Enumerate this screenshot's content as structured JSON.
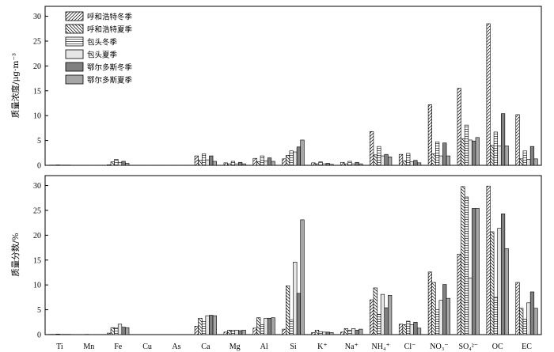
{
  "colors": {
    "hohhot_winter": "hatch-forward",
    "hohhot_summer": "hatch-backward",
    "baotou_winter": "horizontal-lines",
    "baotou_summer": "#e6e6e6",
    "ordos_winter": "#808080",
    "ordos_summer": "#a6a6a6"
  },
  "chart_data": [
    {
      "type": "bar",
      "ylabel": "质量浓度/μg·m⁻³",
      "ylim": [
        0,
        32
      ],
      "yticks": [
        "0",
        "5",
        "10",
        "15",
        "20",
        "25",
        "30"
      ],
      "legend": "top-left",
      "categories": [
        "Ti",
        "Mn",
        "Fe",
        "Cu",
        "As",
        "Ca",
        "Mg",
        "Al",
        "Si",
        "K⁺",
        "Na⁺",
        "NH₄⁺",
        "Cl⁻",
        "NO₃⁻",
        "SO₄²⁻",
        "OC",
        "EC"
      ],
      "series": [
        {
          "name": "呼和浩特冬季",
          "values": [
            0.05,
            0.02,
            0.1,
            0.02,
            0.02,
            1.9,
            0.5,
            1.4,
            1.3,
            0.5,
            0.6,
            6.8,
            2.2,
            12.2,
            15.5,
            28.5,
            10.2
          ]
        },
        {
          "name": "呼和浩特夏季",
          "values": [
            0.05,
            0.02,
            0.7,
            0.02,
            0.02,
            1.0,
            0.3,
            0.7,
            2.0,
            0.3,
            0.3,
            2.1,
            0.9,
            2.3,
            5.3,
            4.0,
            1.3
          ]
        },
        {
          "name": "包头冬季",
          "values": [
            0.08,
            0.03,
            1.2,
            0.03,
            0.02,
            2.3,
            0.8,
            1.9,
            2.9,
            0.7,
            0.8,
            3.8,
            2.4,
            4.7,
            8.1,
            6.7,
            2.9
          ]
        },
        {
          "name": "包头夏季",
          "values": [
            0.05,
            0.02,
            0.6,
            0.02,
            0.02,
            1.1,
            0.3,
            0.9,
            2.7,
            0.3,
            0.3,
            1.9,
            0.7,
            1.9,
            5.1,
            3.9,
            1.2
          ]
        },
        {
          "name": "鄂尔多斯冬季",
          "values": [
            0.05,
            0.02,
            0.8,
            0.02,
            0.02,
            1.9,
            0.6,
            1.5,
            3.7,
            0.4,
            0.6,
            2.2,
            1.0,
            4.5,
            4.9,
            10.4,
            3.8
          ]
        },
        {
          "name": "鄂尔多斯夏季",
          "values": [
            0.05,
            0.02,
            0.4,
            0.02,
            0.02,
            0.8,
            0.3,
            0.8,
            5.1,
            0.2,
            0.3,
            1.7,
            0.5,
            1.9,
            5.6,
            3.9,
            1.3
          ]
        }
      ]
    },
    {
      "type": "bar",
      "ylabel": "质量分数/%",
      "ylim": [
        0,
        32
      ],
      "yticks": [
        "0",
        "5",
        "10",
        "15",
        "20",
        "25",
        "30"
      ],
      "categories": [
        "Ti",
        "Mn",
        "Fe",
        "Cu",
        "As",
        "Ca",
        "Mg",
        "Al",
        "Si",
        "K⁺",
        "Na⁺",
        "NH₄⁺",
        "Cl⁻",
        "NO₃⁻",
        "SO₄²⁻",
        "OC",
        "EC"
      ],
      "series": [
        {
          "name": "呼和浩特冬季",
          "values": [
            0.05,
            0.02,
            0.3,
            0.02,
            0.02,
            1.7,
            0.5,
            1.3,
            1.1,
            0.4,
            0.5,
            7.0,
            2.1,
            12.6,
            16.2,
            29.9,
            10.5
          ]
        },
        {
          "name": "呼和浩特夏季",
          "values": [
            0.05,
            0.02,
            1.4,
            0.02,
            0.02,
            3.3,
            0.9,
            3.4,
            9.8,
            0.9,
            1.2,
            9.4,
            2.0,
            10.5,
            29.8,
            20.7,
            5.3
          ]
        },
        {
          "name": "包头冬季",
          "values": [
            0.1,
            0.05,
            1.3,
            0.03,
            0.02,
            2.6,
            0.8,
            2.0,
            3.0,
            0.6,
            0.9,
            4.1,
            2.7,
            5.0,
            27.7,
            7.5,
            3.1
          ]
        },
        {
          "name": "包头夏季",
          "values": [
            0.05,
            0.02,
            2.1,
            0.02,
            0.02,
            3.8,
            0.9,
            3.3,
            14.6,
            0.5,
            1.2,
            8.1,
            2.0,
            6.9,
            11.4,
            21.4,
            6.4
          ]
        },
        {
          "name": "鄂尔多斯冬季",
          "values": [
            0.05,
            0.02,
            1.5,
            0.02,
            0.02,
            3.9,
            0.8,
            3.3,
            8.3,
            0.5,
            0.9,
            5.4,
            2.5,
            10.1,
            25.4,
            24.3,
            8.6
          ]
        },
        {
          "name": "鄂尔多斯夏季",
          "values": [
            0.05,
            0.02,
            1.4,
            0.02,
            0.02,
            3.8,
            0.9,
            3.4,
            23.1,
            0.4,
            1.1,
            7.9,
            1.3,
            7.3,
            25.4,
            17.3,
            5.3
          ]
        }
      ]
    }
  ]
}
